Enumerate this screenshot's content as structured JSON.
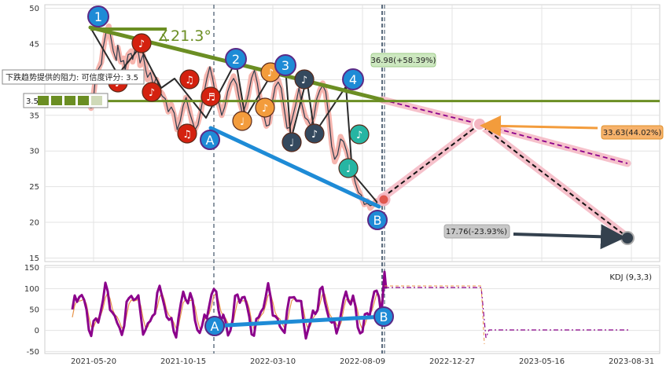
{
  "chart_data": {
    "type": "line",
    "main": {
      "ylim": [
        14.5,
        50.5
      ],
      "y_ticks": [
        "15",
        "20",
        "25",
        "30",
        "35",
        "40",
        "45",
        "50"
      ],
      "resistance_level": 37.0,
      "angle_label": "∡21.3°",
      "resistance_label": "下跌趋势提供的阻力: 可信度评分: 3.5",
      "rating_label": "3.5",
      "price_series_x": [
        0,
        4,
        8,
        10,
        14,
        18,
        20,
        24,
        28,
        30,
        34,
        38,
        40,
        44,
        48,
        50,
        54,
        58,
        60,
        64,
        68,
        70,
        74,
        78,
        80,
        84,
        88,
        92,
        96,
        100,
        104,
        108,
        112,
        116,
        120,
        124,
        128,
        132,
        136,
        140,
        144,
        148,
        152,
        156,
        160,
        164,
        168,
        172,
        176,
        180,
        184,
        188,
        192,
        196,
        200,
        204,
        208,
        212,
        216,
        220,
        224,
        228,
        232,
        236,
        240,
        244,
        248,
        252,
        256,
        260,
        264,
        268,
        272,
        276,
        280,
        284,
        288,
        292,
        296,
        300,
        304,
        308,
        312,
        316,
        320,
        324,
        328,
        332,
        336,
        340,
        344,
        348,
        352,
        356,
        360,
        364,
        368,
        372,
        376,
        380,
        384,
        388,
        392,
        396
      ],
      "price_series_y": [
        37.5,
        36.0,
        38.5,
        40.0,
        41.5,
        42.5,
        44.0,
        46.5,
        47.5,
        46.0,
        44.0,
        43.0,
        44.5,
        42.5,
        43.0,
        41.0,
        43.5,
        44.0,
        42.5,
        44.5,
        44.0,
        42.0,
        43.5,
        41.5,
        40.0,
        41.0,
        39.5,
        40.0,
        38.5,
        38.0,
        37.0,
        35.5,
        36.5,
        35.0,
        33.0,
        34.5,
        36.0,
        37.5,
        36.0,
        34.0,
        33.0,
        34.0,
        35.5,
        38.0,
        40.5,
        41.5,
        40.0,
        38.0,
        36.5,
        35.0,
        36.5,
        38.0,
        39.5,
        40.5,
        39.0,
        37.0,
        35.5,
        36.0,
        38.0,
        40.5,
        41.0,
        39.5,
        37.0,
        35.0,
        33.5,
        34.0,
        36.5,
        39.0,
        40.0,
        38.5,
        36.0,
        33.5,
        33.0,
        35.0,
        37.0,
        38.5,
        36.5,
        35.0,
        34.0,
        33.5,
        35.0,
        37.0,
        38.5,
        39.5,
        38.0,
        35.0,
        31.0,
        28.5,
        29.5,
        32.0,
        31.0,
        30.0,
        28.5,
        27.0,
        25.5,
        24.5,
        23.5,
        22.5,
        23.0,
        22.0,
        22.5,
        23.0,
        22.8,
        23.2
      ]
    },
    "osc": {
      "ylim": [
        -55,
        155
      ],
      "y_ticks": [
        "-50",
        "0",
        "50",
        "100",
        "150"
      ],
      "label": "KDJ (9,3,3)"
    },
    "x_ticks": [
      "2021-05-20",
      "2021-10-15",
      "2022-03-10",
      "2022-08-09",
      "2022-12-27",
      "2023-05-16",
      "2023-08-31"
    ],
    "annotations": {
      "point_1": "1",
      "point_2": "2",
      "point_3": "3",
      "point_4": "4",
      "point_a": "A",
      "point_b": "B",
      "upper_target": "36.98(+58.39%)",
      "mid_target": "33.63(44.02%)",
      "low_target": "17.76(-23.93%)"
    },
    "colors": {
      "resistance": "#6b8e23",
      "support": "#1e8bd6",
      "band": "#f4b6c2",
      "note_red": "#d4210f",
      "note_orange": "#f39c3c",
      "note_dark": "#34495e",
      "note_teal": "#26b5a3",
      "badge_blue": "#1e8bd6",
      "kdj_purple": "#8b008b",
      "mid_label_bg": "#f6b26b",
      "low_label_bg": "#c8c8c8",
      "upper_label_bg": "#cde8c0"
    }
  }
}
